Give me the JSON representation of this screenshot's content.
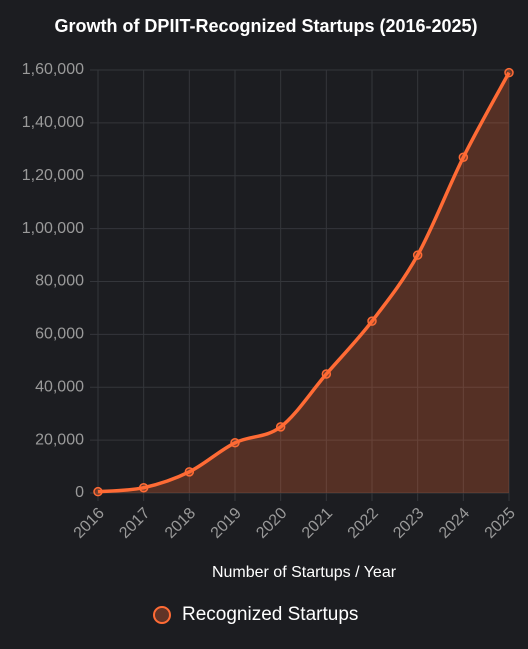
{
  "chart_data": {
    "type": "line",
    "title": "Growth of DPIIT-Recognized Startups (2016-2025)",
    "x_label": "Number of Startups / Year",
    "categories": [
      "2016",
      "2017",
      "2018",
      "2019",
      "2020",
      "2021",
      "2022",
      "2023",
      "2024",
      "2025"
    ],
    "series": [
      {
        "name": "Recognized Startups",
        "color": "#ff6b35",
        "values": [
          500,
          2000,
          8000,
          19000,
          25000,
          45000,
          65000,
          90000,
          127000,
          159000
        ]
      }
    ],
    "area": true,
    "ylim": [
      0,
      160000
    ],
    "yticks": [
      0,
      {
        "value": 20000,
        "label": "20,000"
      },
      {
        "value": 40000,
        "label": "40,000"
      },
      {
        "value": 60000,
        "label": "60,000"
      },
      {
        "value": 80000,
        "label": "80,000"
      },
      {
        "value": 100000,
        "label": "1,00,000"
      },
      {
        "value": 120000,
        "label": "1,20,000"
      },
      {
        "value": 140000,
        "label": "1,40,000"
      },
      {
        "value": 160000,
        "label": "1,60,000"
      }
    ],
    "grid": true
  }
}
